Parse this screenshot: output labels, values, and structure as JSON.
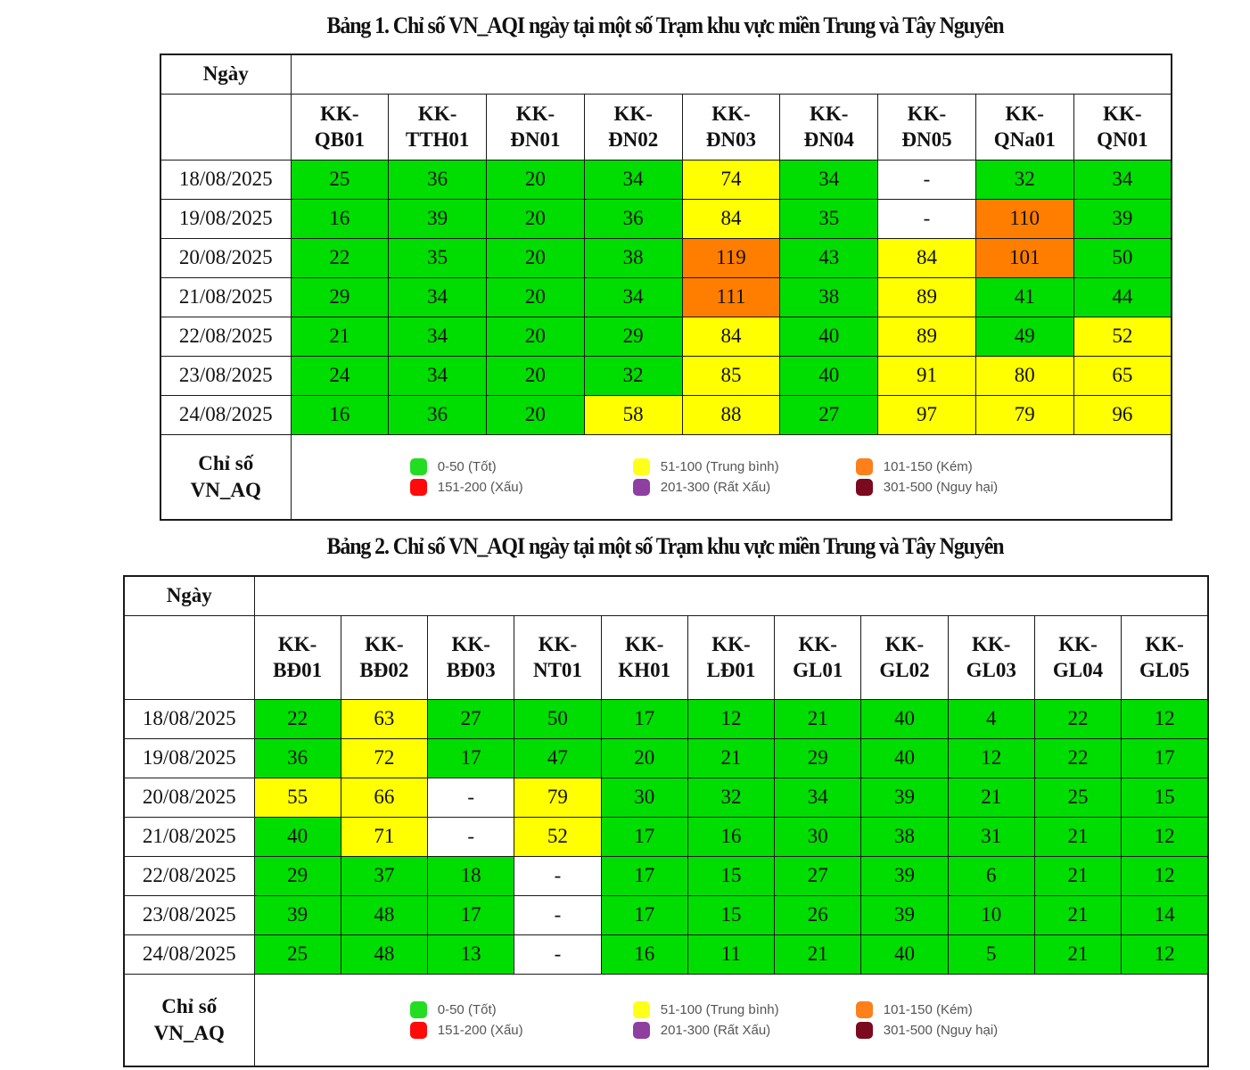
{
  "tables": [
    {
      "title": "Bảng 1. Chỉ số VN_AQI ngày tại một số Trạm khu vực miền Trung và Tây Nguyên",
      "date_header": "Ngày",
      "legend_label_line1": "Chỉ số",
      "legend_label_line2": "VN_AQ",
      "stations": [
        {
          "line1": "KK-",
          "line2": "QB01"
        },
        {
          "line1": "KK-",
          "line2": "TTH01"
        },
        {
          "line1": "KK-",
          "line2": "ĐN01"
        },
        {
          "line1": "KK-",
          "line2": "ĐN02"
        },
        {
          "line1": "KK-",
          "line2": "ĐN03"
        },
        {
          "line1": "KK-",
          "line2": "ĐN04"
        },
        {
          "line1": "KK-",
          "line2": "ĐN05"
        },
        {
          "line1": "KK-",
          "line2": "QNa01"
        },
        {
          "line1": "KK-",
          "line2": "QN01"
        }
      ],
      "rows": [
        {
          "date": "18/08/2025",
          "values": [
            "25",
            "36",
            "20",
            "34",
            "74",
            "34",
            "-",
            "32",
            "34"
          ]
        },
        {
          "date": "19/08/2025",
          "values": [
            "16",
            "39",
            "20",
            "36",
            "84",
            "35",
            "-",
            "110",
            "39"
          ]
        },
        {
          "date": "20/08/2025",
          "values": [
            "22",
            "35",
            "20",
            "38",
            "119",
            "43",
            "84",
            "101",
            "50"
          ]
        },
        {
          "date": "21/08/2025",
          "values": [
            "29",
            "34",
            "20",
            "34",
            "111",
            "38",
            "89",
            "41",
            "44"
          ]
        },
        {
          "date": "22/08/2025",
          "values": [
            "21",
            "34",
            "20",
            "29",
            "84",
            "40",
            "89",
            "49",
            "52"
          ]
        },
        {
          "date": "23/08/2025",
          "values": [
            "24",
            "34",
            "20",
            "32",
            "85",
            "40",
            "91",
            "80",
            "65"
          ]
        },
        {
          "date": "24/08/2025",
          "values": [
            "16",
            "36",
            "20",
            "58",
            "88",
            "27",
            "97",
            "79",
            "96"
          ]
        }
      ]
    },
    {
      "title": "Bảng 2. Chỉ số VN_AQI ngày tại một số Trạm khu vực miền Trung và Tây Nguyên",
      "date_header": "Ngày",
      "legend_label_line1": "Chỉ số",
      "legend_label_line2": "VN_AQ",
      "stations": [
        {
          "line1": "KK-",
          "line2": "BĐ01"
        },
        {
          "line1": "KK-",
          "line2": "BĐ02"
        },
        {
          "line1": "KK-",
          "line2": "BĐ03"
        },
        {
          "line1": "KK-",
          "line2": "NT01"
        },
        {
          "line1": "KK-",
          "line2": "KH01"
        },
        {
          "line1": "KK-",
          "line2": "LĐ01"
        },
        {
          "line1": "KK-",
          "line2": "GL01"
        },
        {
          "line1": "KK-",
          "line2": "GL02"
        },
        {
          "line1": "KK-",
          "line2": "GL03"
        },
        {
          "line1": "KK-",
          "line2": "GL04"
        },
        {
          "line1": "KK-",
          "line2": "GL05"
        }
      ],
      "rows": [
        {
          "date": "18/08/2025",
          "values": [
            "22",
            "63",
            "27",
            "50",
            "17",
            "12",
            "21",
            "40",
            "4",
            "22",
            "12"
          ]
        },
        {
          "date": "19/08/2025",
          "values": [
            "36",
            "72",
            "17",
            "47",
            "20",
            "21",
            "29",
            "40",
            "12",
            "22",
            "17"
          ]
        },
        {
          "date": "20/08/2025",
          "values": [
            "55",
            "66",
            "-",
            "79",
            "30",
            "32",
            "34",
            "39",
            "21",
            "25",
            "15"
          ]
        },
        {
          "date": "21/08/2025",
          "values": [
            "40",
            "71",
            "-",
            "52",
            "17",
            "16",
            "30",
            "38",
            "31",
            "21",
            "12"
          ]
        },
        {
          "date": "22/08/2025",
          "values": [
            "29",
            "37",
            "18",
            "-",
            "17",
            "15",
            "27",
            "39",
            "6",
            "21",
            "12"
          ]
        },
        {
          "date": "23/08/2025",
          "values": [
            "39",
            "48",
            "17",
            "-",
            "17",
            "15",
            "26",
            "39",
            "10",
            "21",
            "14"
          ]
        },
        {
          "date": "24/08/2025",
          "values": [
            "25",
            "48",
            "13",
            "-",
            "16",
            "11",
            "21",
            "40",
            "5",
            "21",
            "12"
          ]
        }
      ]
    }
  ],
  "legend": [
    {
      "label": "0-50 (Tốt)",
      "color": "#22dd22"
    },
    {
      "label": "51-100 (Trung bình)",
      "color": "#ffff1a"
    },
    {
      "label": "101-150 (Kém)",
      "color": "#ff7f1a"
    },
    {
      "label": "151-200 (Xấu)",
      "color": "#ff0a0a"
    },
    {
      "label": "201-300 (Rất Xấu)",
      "color": "#8e3fa0"
    },
    {
      "label": "301-500 (Nguy hại)",
      "color": "#7b0a1e"
    }
  ],
  "cell_colors": {
    "good": "#00dd00",
    "moderate": "#ffff00",
    "poor": "#ff7e00",
    "none": "#ffffff"
  }
}
